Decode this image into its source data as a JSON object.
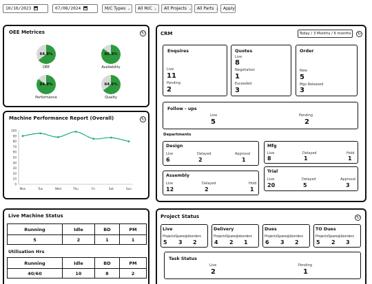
{
  "filters": {
    "from_date": "10/10/2023",
    "to_date": "07/08/2024",
    "mc_types": "M/C Types",
    "all_mc": "All M/C",
    "all_projects": "All Projects",
    "all_parts": "All Parts",
    "apply": "Apply"
  },
  "oee": {
    "title": "OEE Metrices",
    "gauges": [
      {
        "label": "OEE",
        "value": "64.8%",
        "fraction": 0.648
      },
      {
        "label": "Availability",
        "value": "85.3%",
        "fraction": 0.853
      },
      {
        "label": "Performance",
        "value": "84.8%",
        "fraction": 0.848
      },
      {
        "label": "Quality",
        "value": "64.6%",
        "fraction": 0.646
      }
    ]
  },
  "performance": {
    "title": "Machine Performance Report (Overall)"
  },
  "chart_data": {
    "type": "line",
    "categories": [
      "Mon",
      "Tue",
      "Wed",
      "Thu",
      "Fri",
      "Sat",
      "Sun"
    ],
    "values": [
      90,
      95,
      88,
      98,
      85,
      87,
      80
    ],
    "yticks": [
      0,
      10,
      20,
      30,
      40,
      50,
      60,
      70,
      80,
      90,
      100
    ],
    "ylim": [
      0,
      100
    ],
    "grid": false,
    "color": "#1aab8a"
  },
  "crm": {
    "title": "CRM",
    "range_button": "Today / 3 Months / 6 months",
    "enquires": {
      "title": "Enquires",
      "live_label": "Live",
      "live": "11",
      "pending_label": "Pending",
      "pending": "2"
    },
    "quotes": {
      "title": "Quotes",
      "live_label": "Live",
      "live": "8",
      "negotiation_label": "Negotiation",
      "negotiation": "1",
      "exceeded_label": "Exceeded",
      "exceeded": "3"
    },
    "order": {
      "title": "Order",
      "new_label": "New",
      "new": "5",
      "mgs_label": "Mgs Released",
      "mgs": "3"
    },
    "followups": {
      "title": "Follow - ups",
      "live_label": "Live",
      "live": "5",
      "pending_label": "Pending",
      "pending": "2"
    },
    "departments_title": "Departments",
    "design": {
      "title": "Design",
      "l1": "Live",
      "v1": "6",
      "l2": "Delayed",
      "v2": "2",
      "l3": "Approval",
      "v3": "1"
    },
    "mfg": {
      "title": "Mfg",
      "l1": "Live",
      "v1": "8",
      "l2": "Delayed",
      "v2": "1",
      "l3": "Hold",
      "v3": "1"
    },
    "assembly": {
      "title": "Assembly",
      "l1": "Live",
      "v1": "12",
      "l2": "Delayed",
      "v2": "2",
      "l3": "Hold",
      "v3": "1"
    },
    "trial": {
      "title": "Trial",
      "l1": "Live",
      "v1": "20",
      "l2": "Delayed",
      "v2": "5",
      "l3": "Approval",
      "v3": "3"
    }
  },
  "machine_status": {
    "title": "Live Machine Status",
    "headers": [
      "Running",
      "Idle",
      "BD",
      "PM"
    ],
    "values": [
      "5",
      "2",
      "1",
      "1"
    ],
    "util_title": "Utilisation Hrs",
    "util_headers": [
      "Running",
      "Idle",
      "BD",
      "PM"
    ],
    "util_values": [
      "40/60",
      "10",
      "8",
      "2"
    ]
  },
  "project_status": {
    "title": "Project Status",
    "cards": [
      {
        "title": "Live",
        "l1": "Projects",
        "l2": "Spares",
        "l3": "Joborders",
        "v1": "5",
        "v2": "3",
        "v3": "2"
      },
      {
        "title": "Delivery",
        "l1": "Projects",
        "l2": "Spares",
        "l3": "Joborders",
        "v1": "4",
        "v2": "2",
        "v3": "1"
      },
      {
        "title": "Dues",
        "l1": "Projects",
        "l2": "Spares",
        "l3": "Joborders",
        "v1": "6",
        "v2": "3",
        "v3": "2"
      },
      {
        "title": "TO Dues",
        "l1": "Projects",
        "l2": "Spares",
        "l3": "Joborders",
        "v1": "5",
        "v2": "2",
        "v3": "3"
      }
    ],
    "task": {
      "title": "Task Status",
      "live_label": "Live",
      "live": "2",
      "pending_label": "Pending",
      "pending": "1"
    }
  },
  "icons": {
    "refresh": "refresh-icon",
    "calendar": "calendar-icon",
    "dropdown": "chevron-down-icon"
  }
}
